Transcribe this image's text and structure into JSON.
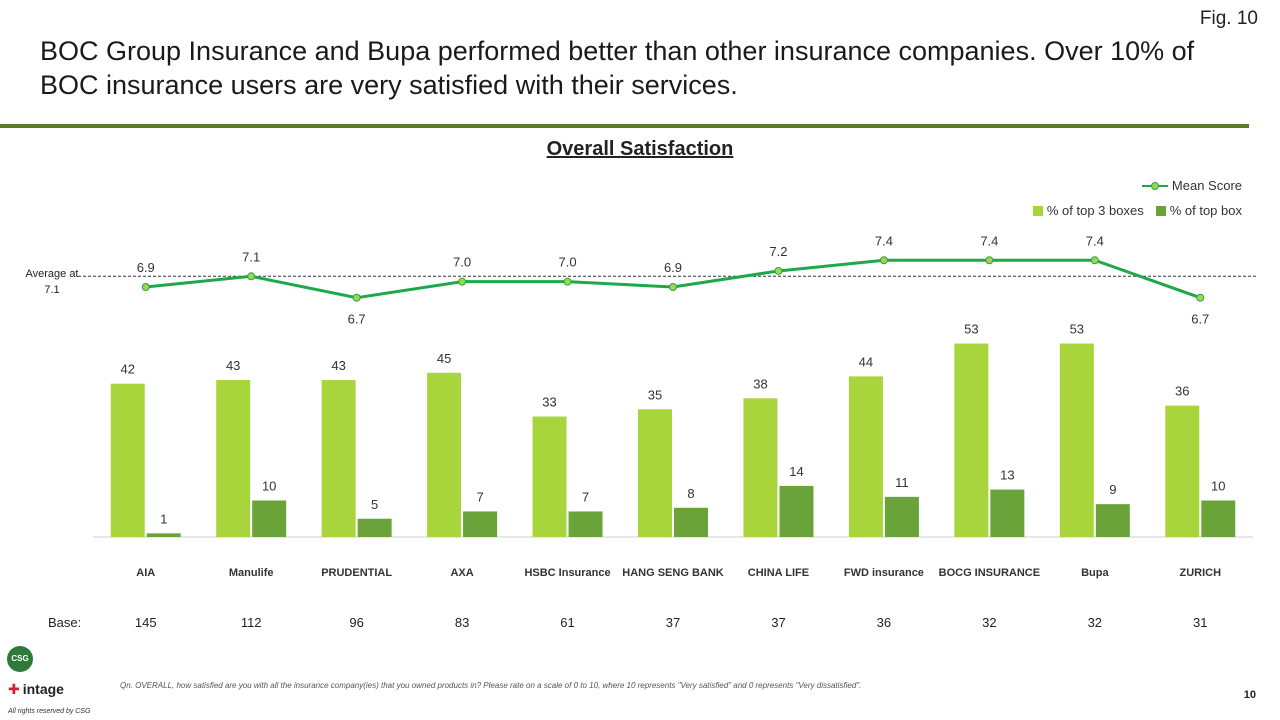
{
  "fig_label": "Fig. 10",
  "title": "BOC Group Insurance and Bupa performed better than other insurance companies. Over 10% of BOC insurance users are very satisfied with their services.",
  "average_label": "Average at 7.1",
  "base_label": "Base:",
  "footnote": "Qn. OVERALL, how satisfied are you with all the insurance company(ies) that you owned products in? Please rate on a scale of 0 to 10, where 10 represents \"Very satisfied\" and 0 represents \"Very dissatisfied\".",
  "page_number": "10",
  "rights": "All rights reserved by CSG",
  "footer_logos": {
    "csg": "CSG",
    "intage": "intage"
  },
  "colors": {
    "top3": "#a8d53b",
    "topbox": "#6aa33a",
    "mean_line": "#1fa84a",
    "mean_marker": "#9ed54a",
    "rule": "#5a7d2b"
  },
  "chart_data": {
    "type": "bar",
    "title": "Overall Satisfaction",
    "categories": [
      "AIA",
      "Manulife",
      "PRUDENTIAL",
      "AXA",
      "HSBC Insurance",
      "HANG SENG BANK",
      "CHINA LIFE",
      "FWD insurance",
      "BOCG INSURANCE",
      "Bupa",
      "ZURICH"
    ],
    "series": [
      {
        "name": "% of top 3 boxes",
        "values": [
          42,
          43,
          43,
          45,
          33,
          35,
          38,
          44,
          53,
          53,
          36
        ]
      },
      {
        "name": "% of top box",
        "values": [
          1,
          10,
          5,
          7,
          7,
          8,
          14,
          11,
          13,
          9,
          10
        ]
      }
    ],
    "line_series": {
      "name": "Mean Score",
      "values": [
        6.9,
        7.1,
        6.7,
        7.0,
        7.0,
        6.9,
        7.2,
        7.4,
        7.4,
        7.4,
        6.7
      ],
      "labels": [
        "6.9",
        "7.1",
        "6.7",
        "7.0",
        "7.0",
        "6.9",
        "7.2",
        "7.4",
        "7.4",
        "7.4",
        "6.7"
      ]
    },
    "average": 7.1,
    "base": [
      145,
      112,
      96,
      83,
      61,
      37,
      37,
      36,
      32,
      32,
      31
    ],
    "legend_position": "top-right",
    "grid": false
  }
}
